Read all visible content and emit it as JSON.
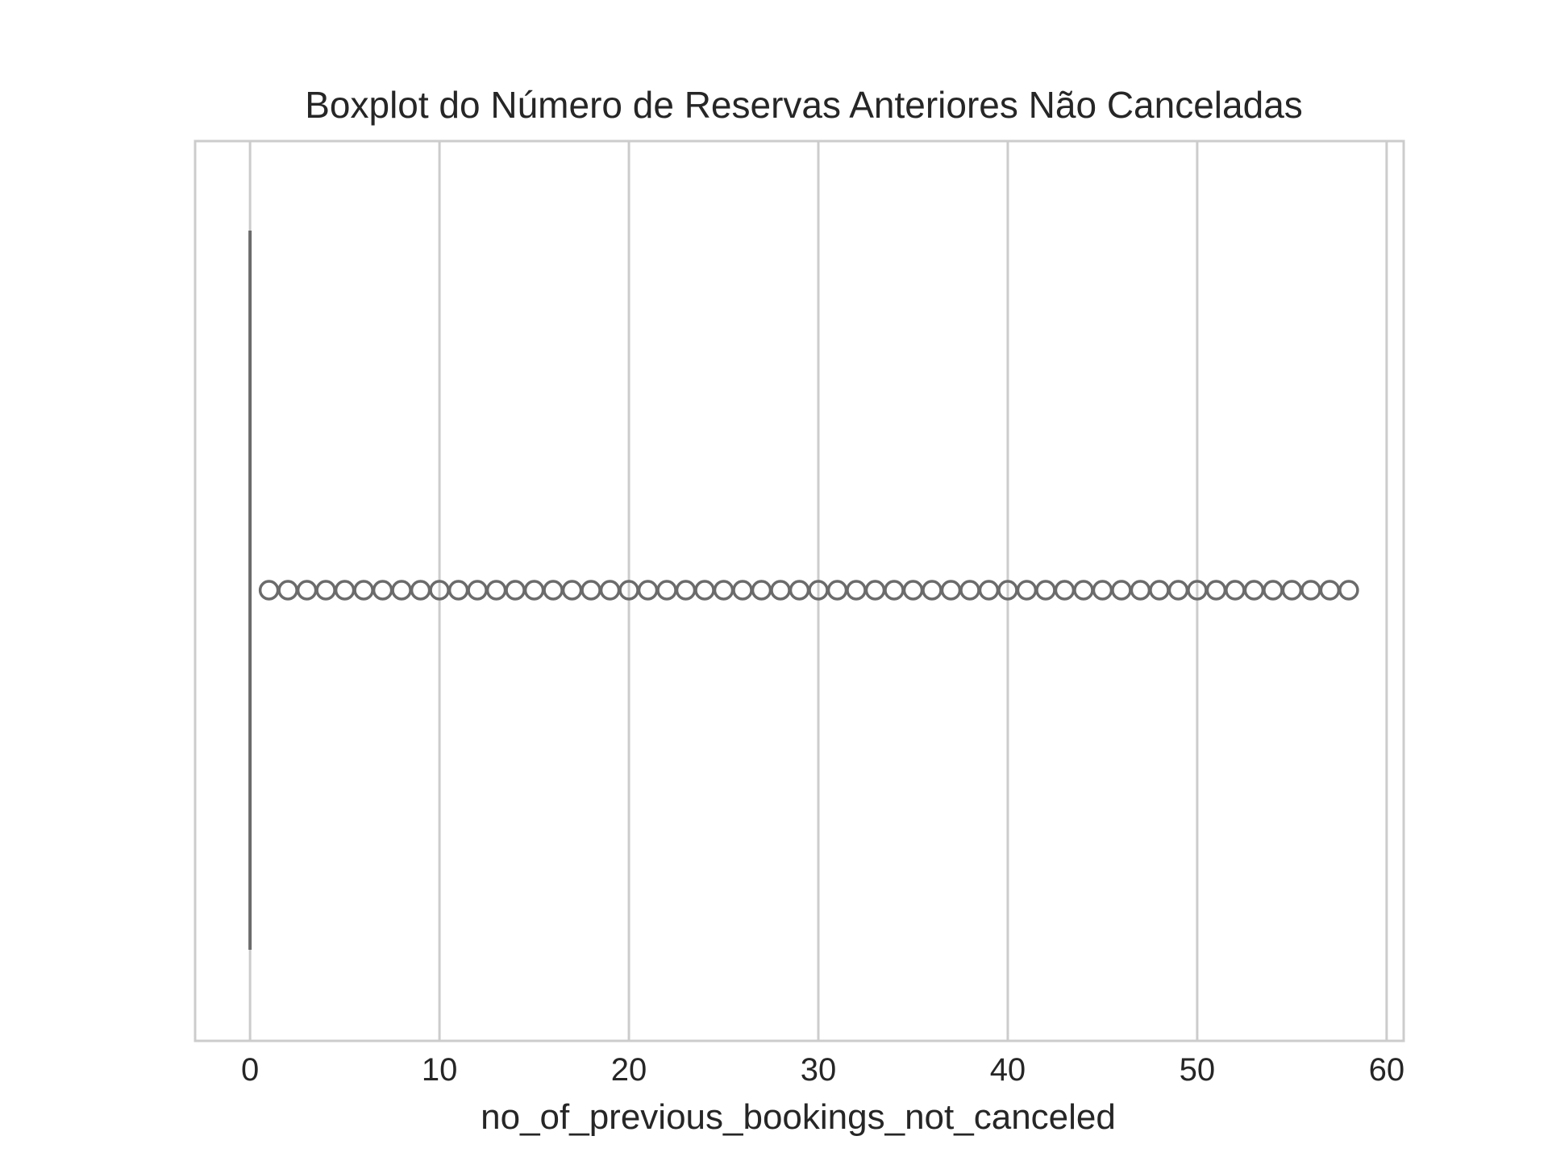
{
  "chart_data": {
    "type": "boxplot",
    "orientation": "horizontal",
    "title": "Boxplot do Número de Reservas Anteriores Não Canceladas",
    "xlabel": "no_of_previous_bookings_not_canceled",
    "ylabel": "",
    "xlim": [
      -2.9,
      60.9
    ],
    "xticks": [
      0,
      10,
      20,
      30,
      40,
      50,
      60
    ],
    "xtick_labels": [
      "0",
      "10",
      "20",
      "30",
      "40",
      "50",
      "60"
    ],
    "grid": "vertical",
    "box": {
      "min": 0,
      "q1": 0,
      "median": 0,
      "q3": 0,
      "max": 0
    },
    "outliers": [
      1,
      2,
      3,
      4,
      5,
      6,
      7,
      8,
      9,
      10,
      11,
      12,
      13,
      14,
      15,
      16,
      17,
      18,
      19,
      20,
      21,
      22,
      23,
      24,
      25,
      26,
      27,
      28,
      29,
      30,
      31,
      32,
      33,
      34,
      35,
      36,
      37,
      38,
      39,
      40,
      41,
      42,
      43,
      44,
      45,
      46,
      47,
      48,
      49,
      50,
      51,
      52,
      53,
      54,
      55,
      56,
      57,
      58
    ],
    "colors": {
      "box_line": "#6b6b6b",
      "grid": "#cccccc",
      "spine": "#cccccc",
      "text": "#262626"
    }
  }
}
